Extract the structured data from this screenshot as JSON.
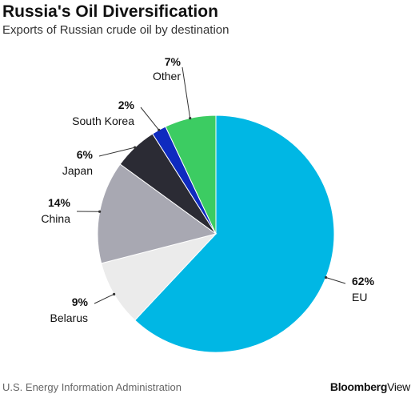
{
  "header": {
    "title": "Russia's Oil Diversification",
    "subtitle": "Exports of Russian crude oil by destination"
  },
  "footer": {
    "source": "U.S. Energy Information Administration",
    "brand_bold": "Bloomberg",
    "brand_light": "View"
  },
  "chart_data": {
    "type": "pie",
    "title": "Russia's Oil Diversification",
    "subtitle": "Exports of Russian crude oil by destination",
    "unit": "%",
    "slices": [
      {
        "name": "EU",
        "value": 62,
        "label": "62%",
        "color": "#00b7e4"
      },
      {
        "name": "Belarus",
        "value": 9,
        "label": "9%",
        "color": "#ebebeb"
      },
      {
        "name": "China",
        "value": 14,
        "label": "14%",
        "color": "#a8a8b2"
      },
      {
        "name": "Japan",
        "value": 6,
        "label": "6%",
        "color": "#2b2b34"
      },
      {
        "name": "South Korea",
        "value": 2,
        "label": "2%",
        "color": "#0f2bbf"
      },
      {
        "name": "Other",
        "value": 7,
        "label": "7%",
        "color": "#3ccc62"
      }
    ]
  }
}
